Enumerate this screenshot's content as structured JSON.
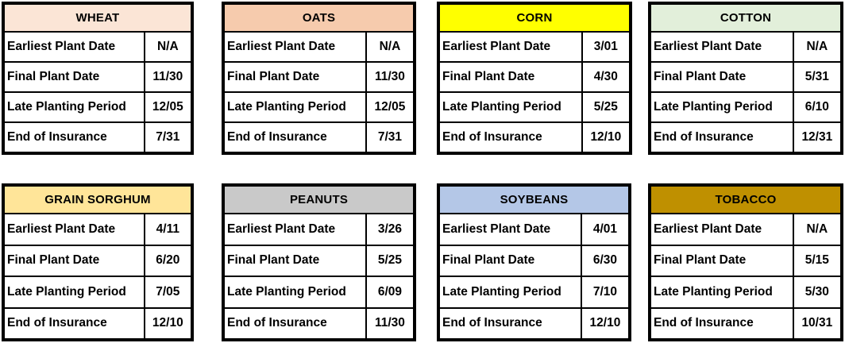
{
  "row_labels": [
    "Earliest Plant Date",
    "Final Plant Date",
    "Late Planting Period",
    "End of Insurance"
  ],
  "tables": [
    {
      "crop": "WHEAT",
      "header_color": "#FBE5D6",
      "values": [
        "N/A",
        "11/30",
        "12/05",
        "7/31"
      ]
    },
    {
      "crop": "OATS",
      "header_color": "#F6CBAD",
      "values": [
        "N/A",
        "11/30",
        "12/05",
        "7/31"
      ]
    },
    {
      "crop": "CORN",
      "header_color": "#FFFF00",
      "values": [
        "3/01",
        "4/30",
        "5/25",
        "12/10"
      ]
    },
    {
      "crop": "COTTON",
      "header_color": "#E2EFDA",
      "values": [
        "N/A",
        "5/31",
        "6/10",
        "12/31"
      ]
    },
    {
      "crop": "GRAIN SORGHUM",
      "header_color": "#FFE599",
      "values": [
        "4/11",
        "6/20",
        "7/05",
        "12/10"
      ]
    },
    {
      "crop": "PEANUTS",
      "header_color": "#C9C9C9",
      "values": [
        "3/26",
        "5/25",
        "6/09",
        "11/30"
      ]
    },
    {
      "crop": "SOYBEANS",
      "header_color": "#B4C7E7",
      "values": [
        "4/01",
        "6/30",
        "7/10",
        "12/10"
      ]
    },
    {
      "crop": "TOBACCO",
      "header_color": "#BF9000",
      "values": [
        "N/A",
        "5/15",
        "5/30",
        "10/31"
      ]
    }
  ]
}
